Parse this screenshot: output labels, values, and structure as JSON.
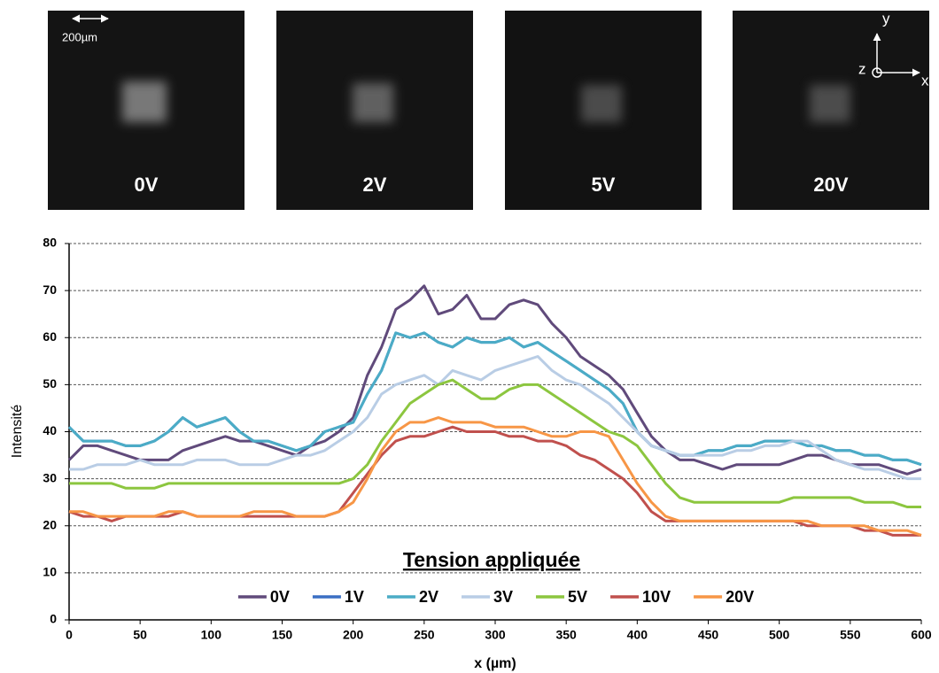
{
  "panels": {
    "labels": [
      "0V",
      "2V",
      "5V",
      "20V"
    ],
    "scale_bar": "200µm",
    "axes": [
      "y",
      "z",
      "x"
    ]
  },
  "chart_data": {
    "type": "line",
    "x_label": "x (µm)",
    "y_label": "Intensité",
    "legend_title": "Tension appliquée",
    "legend_position": "bottom",
    "grid": true,
    "xlim": [
      0,
      600
    ],
    "xticks": [
      0,
      50,
      100,
      150,
      200,
      250,
      300,
      350,
      400,
      450,
      500,
      550,
      600
    ],
    "ylim": [
      0,
      80
    ],
    "yticks": [
      0,
      10,
      20,
      30,
      40,
      50,
      60,
      70,
      80
    ],
    "x": [
      0,
      10,
      20,
      30,
      40,
      50,
      60,
      70,
      80,
      90,
      100,
      110,
      120,
      130,
      140,
      150,
      160,
      170,
      180,
      190,
      200,
      210,
      220,
      230,
      240,
      250,
      260,
      270,
      280,
      290,
      300,
      310,
      320,
      330,
      340,
      350,
      360,
      370,
      380,
      390,
      400,
      410,
      420,
      430,
      440,
      450,
      460,
      470,
      480,
      490,
      500,
      510,
      520,
      530,
      540,
      550,
      560,
      570,
      580,
      590,
      600
    ],
    "series": [
      {
        "name": "0V",
        "color": "#604a7b",
        "values": [
          34,
          37,
          37,
          36,
          35,
          34,
          34,
          34,
          36,
          37,
          38,
          39,
          38,
          38,
          37,
          36,
          35,
          37,
          38,
          40,
          43,
          52,
          58,
          66,
          68,
          71,
          65,
          66,
          69,
          64,
          64,
          67,
          68,
          67,
          63,
          60,
          56,
          54,
          52,
          49,
          44,
          39,
          36,
          34,
          34,
          33,
          32,
          33,
          33,
          33,
          33,
          34,
          35,
          35,
          34,
          33,
          33,
          33,
          32,
          31,
          32
        ]
      },
      {
        "name": "1V",
        "color": "#3a6fc4",
        "values": [
          41,
          38,
          38,
          38,
          37,
          37,
          38,
          40,
          43,
          41,
          42,
          43,
          40,
          38,
          38,
          37,
          36,
          37,
          40,
          41,
          42,
          48,
          53,
          61,
          60,
          61,
          59,
          58,
          60,
          59,
          59,
          60,
          58,
          59,
          57,
          55,
          53,
          51,
          49,
          46,
          40,
          37,
          36,
          35,
          35,
          36,
          36,
          37,
          37,
          38,
          38,
          38,
          37,
          37,
          36,
          36,
          35,
          35,
          34,
          34,
          33
        ]
      },
      {
        "name": "2V",
        "color": "#4bacc6",
        "values": [
          41,
          38,
          38,
          38,
          37,
          37,
          38,
          40,
          43,
          41,
          42,
          43,
          40,
          38,
          38,
          37,
          36,
          37,
          40,
          41,
          42,
          48,
          53,
          61,
          60,
          61,
          59,
          58,
          60,
          59,
          59,
          60,
          58,
          59,
          57,
          55,
          53,
          51,
          49,
          46,
          40,
          37,
          36,
          35,
          35,
          36,
          36,
          37,
          37,
          38,
          38,
          38,
          37,
          37,
          36,
          36,
          35,
          35,
          34,
          34,
          33
        ]
      },
      {
        "name": "3V",
        "color": "#b9cde5",
        "values": [
          32,
          32,
          33,
          33,
          33,
          34,
          33,
          33,
          33,
          34,
          34,
          34,
          33,
          33,
          33,
          34,
          35,
          35,
          36,
          38,
          40,
          43,
          48,
          50,
          51,
          52,
          50,
          53,
          52,
          51,
          53,
          54,
          55,
          56,
          53,
          51,
          50,
          48,
          46,
          43,
          40,
          37,
          36,
          35,
          35,
          35,
          35,
          36,
          36,
          37,
          37,
          38,
          38,
          36,
          34,
          33,
          32,
          32,
          31,
          30,
          30
        ]
      },
      {
        "name": "5V",
        "color": "#8cc63f",
        "values": [
          29,
          29,
          29,
          29,
          28,
          28,
          28,
          29,
          29,
          29,
          29,
          29,
          29,
          29,
          29,
          29,
          29,
          29,
          29,
          29,
          30,
          33,
          38,
          42,
          46,
          48,
          50,
          51,
          49,
          47,
          47,
          49,
          50,
          50,
          48,
          46,
          44,
          42,
          40,
          39,
          37,
          33,
          29,
          26,
          25,
          25,
          25,
          25,
          25,
          25,
          25,
          26,
          26,
          26,
          26,
          26,
          25,
          25,
          25,
          24,
          24
        ]
      },
      {
        "name": "10V",
        "color": "#c0504d",
        "values": [
          23,
          22,
          22,
          21,
          22,
          22,
          22,
          22,
          23,
          22,
          22,
          22,
          22,
          22,
          22,
          22,
          22,
          22,
          22,
          23,
          27,
          31,
          35,
          38,
          39,
          39,
          40,
          41,
          40,
          40,
          40,
          39,
          39,
          38,
          38,
          37,
          35,
          34,
          32,
          30,
          27,
          23,
          21,
          21,
          21,
          21,
          21,
          21,
          21,
          21,
          21,
          21,
          20,
          20,
          20,
          20,
          19,
          19,
          18,
          18,
          18
        ]
      },
      {
        "name": "20V",
        "color": "#f79646",
        "values": [
          23,
          23,
          22,
          22,
          22,
          22,
          22,
          23,
          23,
          22,
          22,
          22,
          22,
          23,
          23,
          23,
          22,
          22,
          22,
          23,
          25,
          30,
          36,
          40,
          42,
          42,
          43,
          42,
          42,
          42,
          41,
          41,
          41,
          40,
          39,
          39,
          40,
          40,
          39,
          34,
          29,
          25,
          22,
          21,
          21,
          21,
          21,
          21,
          21,
          21,
          21,
          21,
          21,
          20,
          20,
          20,
          20,
          19,
          19,
          19,
          18
        ]
      }
    ]
  }
}
